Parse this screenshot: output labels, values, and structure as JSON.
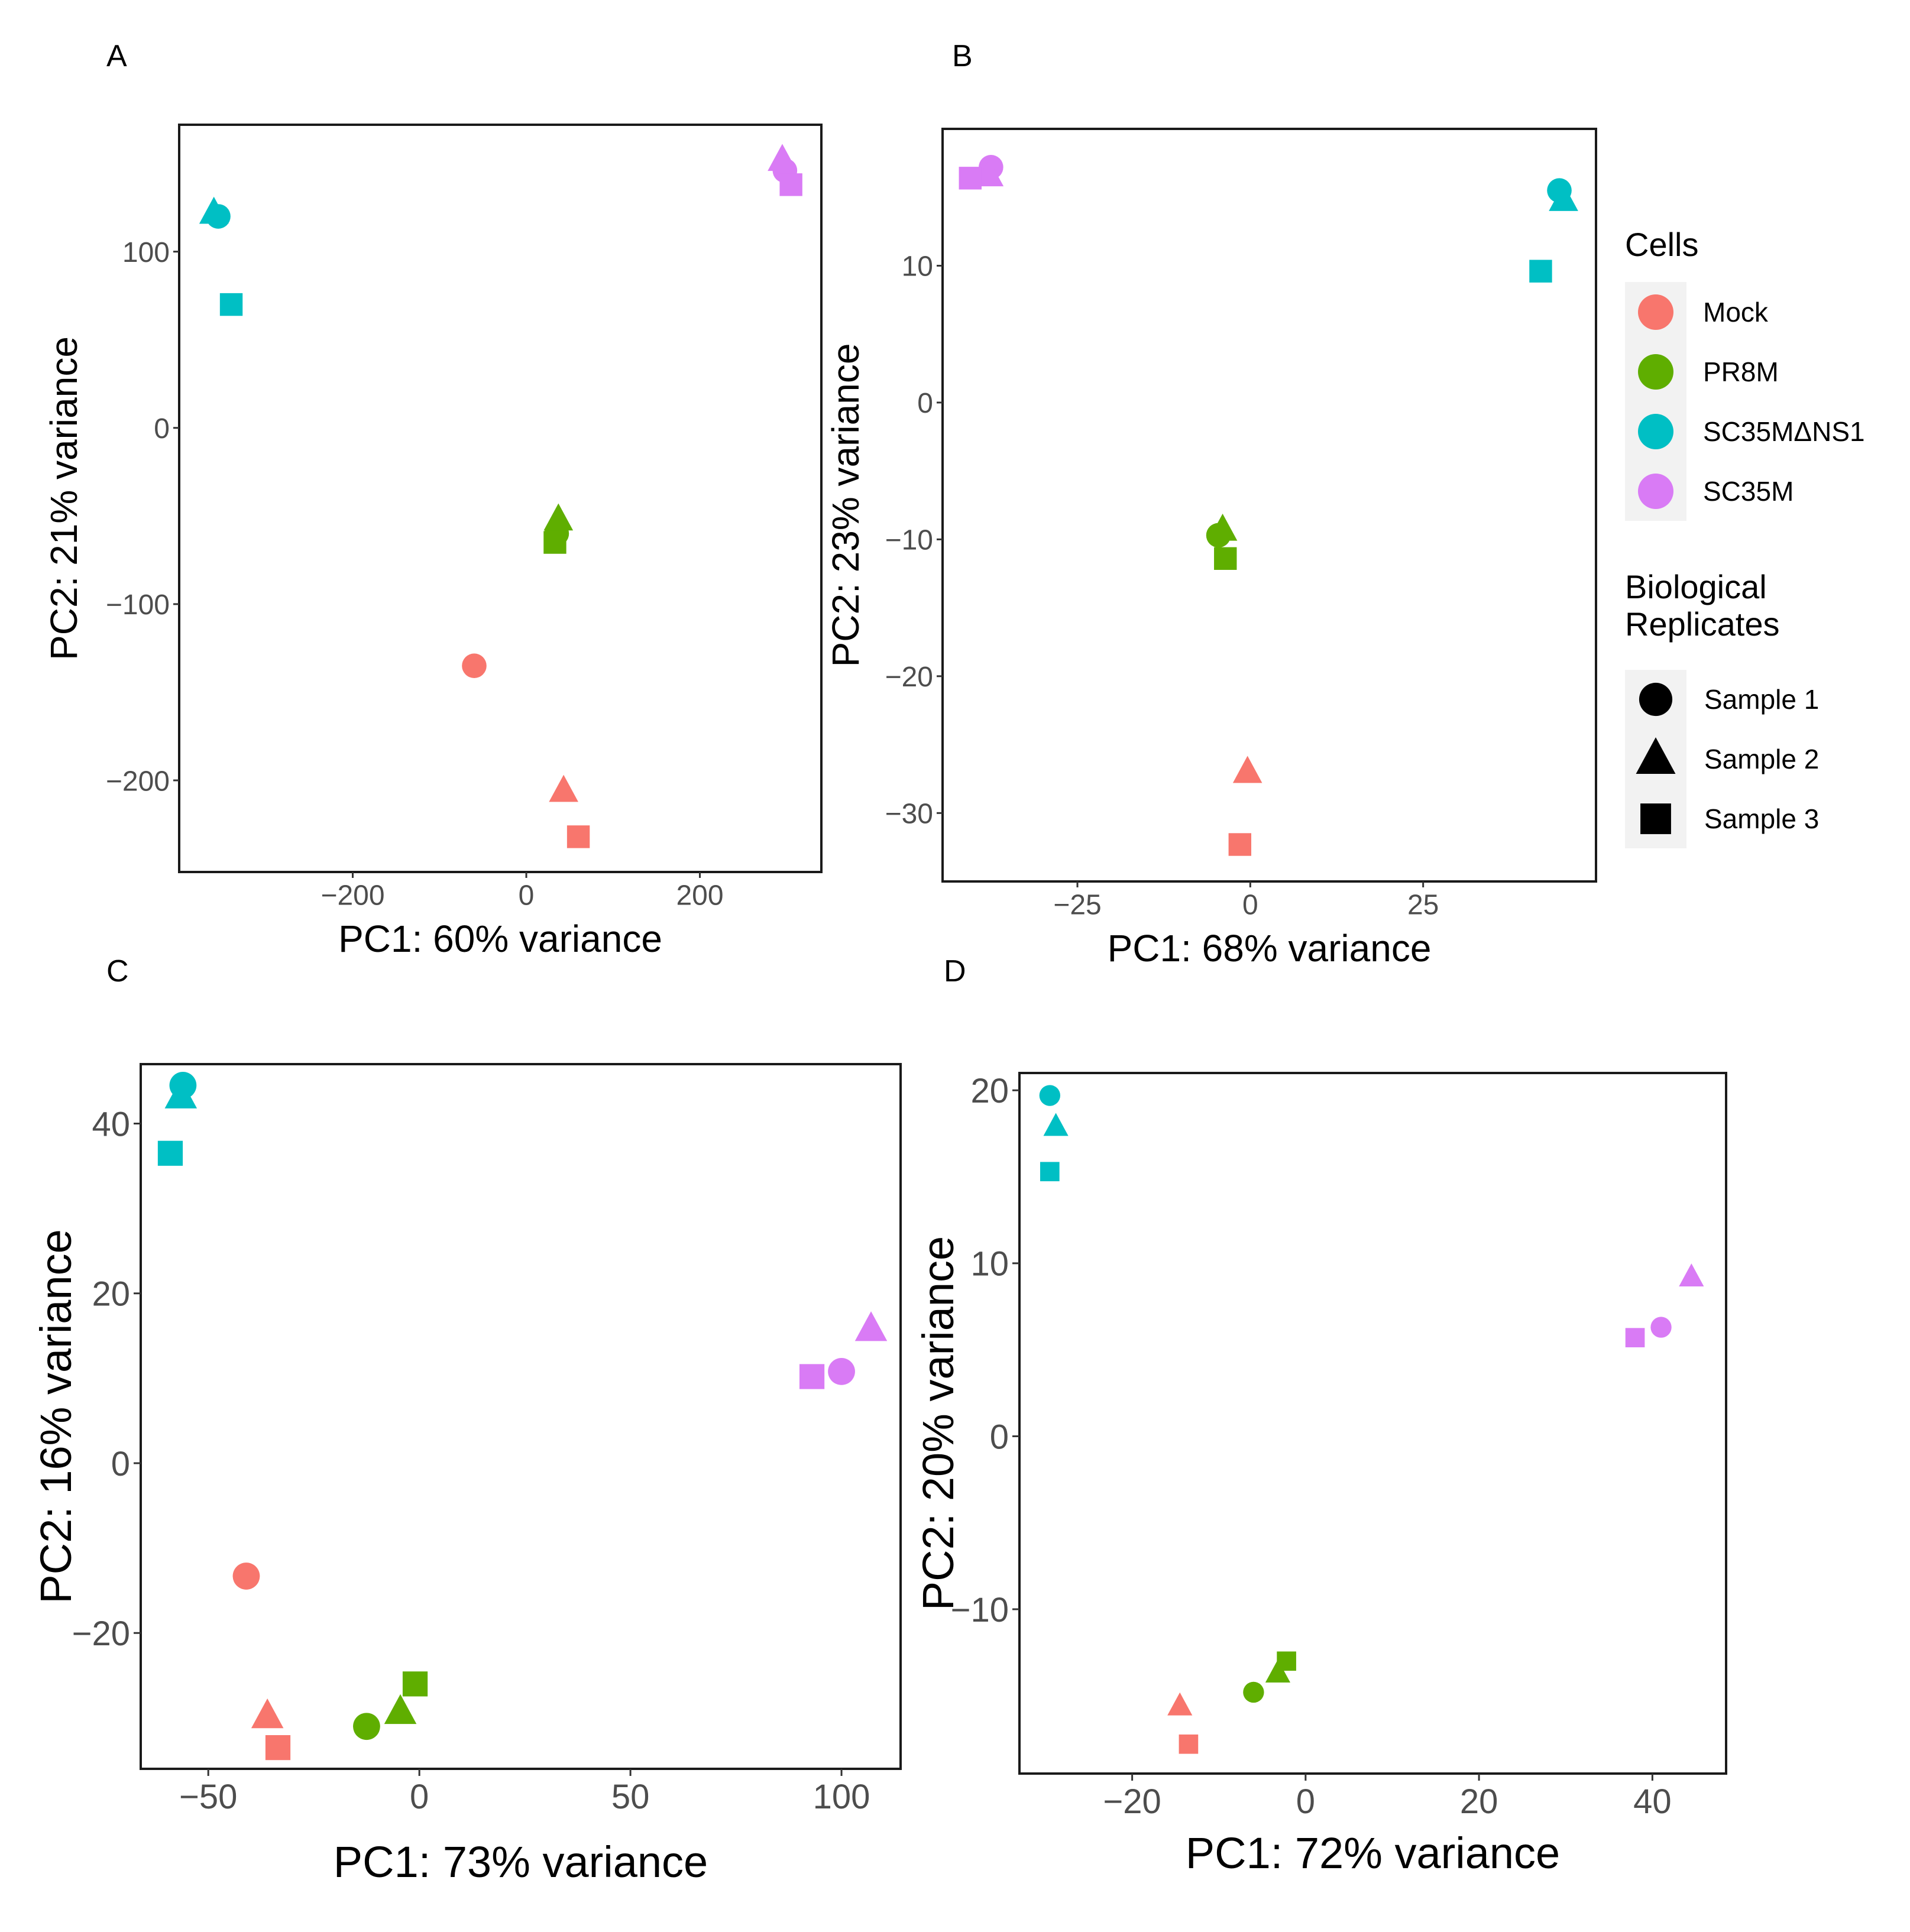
{
  "colors": {
    "Mock": "#f8766d",
    "PR8M": "#5fae00",
    "SC35MΔNS1": "#00bfc4",
    "SC35M": "#d97bf5"
  },
  "legend": {
    "cells_title": "Cells",
    "cells": [
      "Mock",
      "PR8M",
      "SC35MΔNS1",
      "SC35M"
    ],
    "replicates_title_line1": "Biological",
    "replicates_title_line2": "Replicates",
    "replicates": [
      {
        "label": "Sample 1",
        "shape": "circle"
      },
      {
        "label": "Sample 2",
        "shape": "triangle"
      },
      {
        "label": "Sample 3",
        "shape": "square"
      }
    ]
  },
  "chart_data": [
    {
      "panel": "A",
      "type": "scatter",
      "xlabel": "PC1: 60% variance",
      "ylabel": "PC2: 21% variance",
      "xlim": [
        -400,
        340
      ],
      "ylim": [
        -252,
        172
      ],
      "xticks": [
        -200,
        0,
        200
      ],
      "yticks": [
        -200,
        -100,
        0,
        100
      ],
      "grid": false,
      "points": [
        {
          "cell": "SC35MΔNS1",
          "sample": "Sample 1",
          "x": -355,
          "y": 120
        },
        {
          "cell": "SC35MΔNS1",
          "sample": "Sample 2",
          "x": -360,
          "y": 122
        },
        {
          "cell": "SC35MΔNS1",
          "sample": "Sample 3",
          "x": -340,
          "y": 70
        },
        {
          "cell": "SC35M",
          "sample": "Sample 1",
          "x": 298,
          "y": 146
        },
        {
          "cell": "SC35M",
          "sample": "Sample 2",
          "x": 295,
          "y": 152
        },
        {
          "cell": "SC35M",
          "sample": "Sample 3",
          "x": 305,
          "y": 138
        },
        {
          "cell": "PR8M",
          "sample": "Sample 1",
          "x": 35,
          "y": -60
        },
        {
          "cell": "PR8M",
          "sample": "Sample 2",
          "x": 37,
          "y": -52
        },
        {
          "cell": "PR8M",
          "sample": "Sample 3",
          "x": 33,
          "y": -65
        },
        {
          "cell": "Mock",
          "sample": "Sample 1",
          "x": -60,
          "y": -135
        },
        {
          "cell": "Mock",
          "sample": "Sample 2",
          "x": 43,
          "y": -206
        },
        {
          "cell": "Mock",
          "sample": "Sample 3",
          "x": 60,
          "y": -232
        }
      ]
    },
    {
      "panel": "B",
      "type": "scatter",
      "xlabel": "PC1: 68% variance",
      "ylabel": "PC2: 23% variance",
      "xlim": [
        -44.5,
        50
      ],
      "ylim": [
        -35,
        20
      ],
      "xticks": [
        -25,
        0,
        25
      ],
      "yticks": [
        -30,
        -20,
        -10,
        0,
        10
      ],
      "grid": false,
      "points": [
        {
          "cell": "SC35M",
          "sample": "Sample 1",
          "x": -37.5,
          "y": 17.2
        },
        {
          "cell": "SC35M",
          "sample": "Sample 2",
          "x": -37.8,
          "y": 16.6
        },
        {
          "cell": "SC35M",
          "sample": "Sample 3",
          "x": -40.5,
          "y": 16.4
        },
        {
          "cell": "SC35MΔNS1",
          "sample": "Sample 1",
          "x": 44.7,
          "y": 15.5
        },
        {
          "cell": "SC35MΔNS1",
          "sample": "Sample 2",
          "x": 45.3,
          "y": 14.8
        },
        {
          "cell": "SC35MΔNS1",
          "sample": "Sample 3",
          "x": 42.0,
          "y": 9.6
        },
        {
          "cell": "PR8M",
          "sample": "Sample 1",
          "x": -4.6,
          "y": -9.7
        },
        {
          "cell": "PR8M",
          "sample": "Sample 2",
          "x": -4.0,
          "y": -9.3
        },
        {
          "cell": "PR8M",
          "sample": "Sample 3",
          "x": -3.6,
          "y": -11.4
        },
        {
          "cell": "Mock",
          "sample": "Sample 2",
          "x": -0.4,
          "y": -27.0
        },
        {
          "cell": "Mock",
          "sample": "Sample 3",
          "x": -1.5,
          "y": -32.3
        }
      ]
    },
    {
      "panel": "C",
      "type": "scatter",
      "xlabel": "PC1: 73% variance",
      "ylabel": "PC2: 16% variance",
      "xlim": [
        -66,
        114
      ],
      "ylim": [
        -36,
        47
      ],
      "xticks": [
        -50,
        0,
        50,
        100
      ],
      "yticks": [
        -20,
        0,
        20,
        40
      ],
      "grid": false,
      "points": [
        {
          "cell": "SC35MΔNS1",
          "sample": "Sample 1",
          "x": -56,
          "y": 44.5
        },
        {
          "cell": "SC35MΔNS1",
          "sample": "Sample 2",
          "x": -56.5,
          "y": 43.2
        },
        {
          "cell": "SC35MΔNS1",
          "sample": "Sample 3",
          "x": -59,
          "y": 36.5
        },
        {
          "cell": "SC35M",
          "sample": "Sample 1",
          "x": 100,
          "y": 10.8
        },
        {
          "cell": "SC35M",
          "sample": "Sample 2",
          "x": 107,
          "y": 15.8
        },
        {
          "cell": "SC35M",
          "sample": "Sample 3",
          "x": 93,
          "y": 10.2
        },
        {
          "cell": "Mock",
          "sample": "Sample 1",
          "x": -41,
          "y": -13.3
        },
        {
          "cell": "Mock",
          "sample": "Sample 2",
          "x": -36,
          "y": -29.8
        },
        {
          "cell": "Mock",
          "sample": "Sample 3",
          "x": -33.5,
          "y": -33.5
        },
        {
          "cell": "PR8M",
          "sample": "Sample 1",
          "x": -12.5,
          "y": -31
        },
        {
          "cell": "PR8M",
          "sample": "Sample 2",
          "x": -4.5,
          "y": -29.3
        },
        {
          "cell": "PR8M",
          "sample": "Sample 3",
          "x": -1,
          "y": -26
        }
      ]
    },
    {
      "panel": "D",
      "type": "scatter",
      "xlabel": "PC1: 72% variance",
      "ylabel": "PC2: 20% variance",
      "xlim": [
        -33,
        48.5
      ],
      "ylim": [
        -19.5,
        21
      ],
      "xticks": [
        -20,
        0,
        20,
        40
      ],
      "yticks": [
        -10,
        0,
        10,
        20
      ],
      "grid": false,
      "points": [
        {
          "cell": "SC35MΔNS1",
          "sample": "Sample 1",
          "x": -29.5,
          "y": 19.7
        },
        {
          "cell": "SC35MΔNS1",
          "sample": "Sample 2",
          "x": -28.8,
          "y": 17.9
        },
        {
          "cell": "SC35MΔNS1",
          "sample": "Sample 3",
          "x": -29.5,
          "y": 15.3
        },
        {
          "cell": "SC35M",
          "sample": "Sample 1",
          "x": 41,
          "y": 6.3
        },
        {
          "cell": "SC35M",
          "sample": "Sample 2",
          "x": 44.5,
          "y": 9.2
        },
        {
          "cell": "SC35M",
          "sample": "Sample 3",
          "x": 38,
          "y": 5.7
        },
        {
          "cell": "Mock",
          "sample": "Sample 2",
          "x": -14.5,
          "y": -15.6
        },
        {
          "cell": "Mock",
          "sample": "Sample 3",
          "x": -13.5,
          "y": -17.8
        },
        {
          "cell": "PR8M",
          "sample": "Sample 1",
          "x": -6,
          "y": -14.8
        },
        {
          "cell": "PR8M",
          "sample": "Sample 2",
          "x": -3.2,
          "y": -13.7
        },
        {
          "cell": "PR8M",
          "sample": "Sample 3",
          "x": -2.2,
          "y": -13
        }
      ]
    }
  ]
}
